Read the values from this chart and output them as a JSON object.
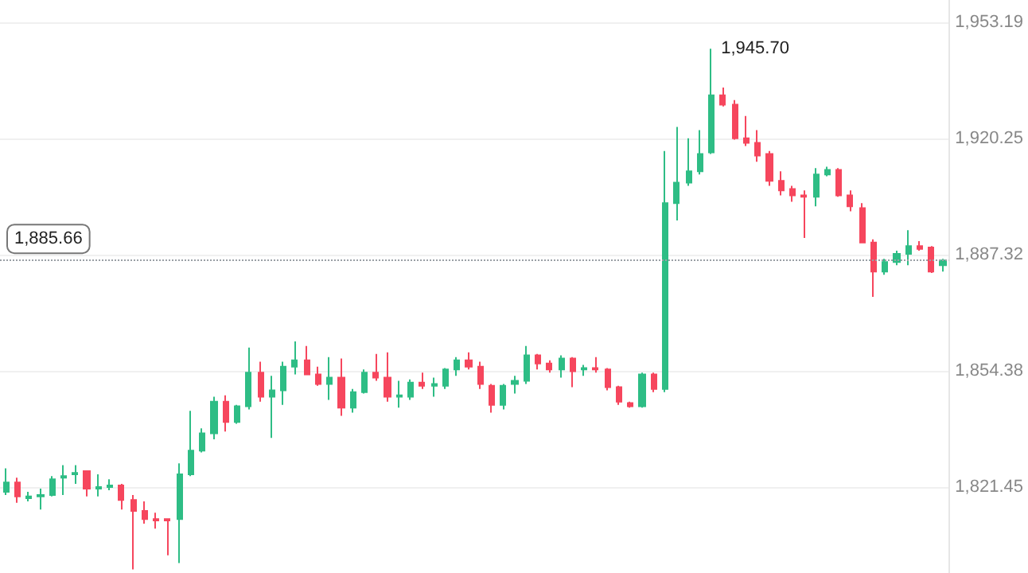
{
  "chart_data": {
    "type": "candlestick",
    "categories": [
      null,
      null,
      null,
      null,
      null,
      null,
      null,
      null,
      null,
      null,
      null,
      null,
      null,
      null,
      null,
      null,
      null,
      null,
      null,
      null,
      null,
      null,
      null,
      null,
      null,
      null,
      null,
      null,
      null,
      null,
      null,
      null,
      null,
      null,
      null,
      null,
      null,
      null,
      null,
      null,
      null,
      null,
      null,
      null,
      null,
      null,
      null,
      null,
      null,
      null,
      null,
      null,
      null,
      null,
      null,
      null,
      null,
      null,
      null,
      null,
      null,
      null,
      null,
      null,
      null,
      null,
      null,
      null,
      null,
      null,
      null,
      null,
      null,
      null,
      null,
      null,
      null,
      null,
      null,
      null,
      null,
      null
    ],
    "ohlc": [
      [
        1820.0,
        1826.7,
        1819.1,
        1822.7
      ],
      [
        1822.7,
        1824.0,
        1816.9,
        1818.7
      ],
      [
        1818.2,
        1820.0,
        1817.3,
        1818.7
      ],
      [
        1818.7,
        1820.9,
        1815.0,
        1819.1
      ],
      [
        1819.1,
        1824.5,
        1818.7,
        1823.6
      ],
      [
        1824.0,
        1827.6,
        1819.1,
        1824.5
      ],
      [
        1825.0,
        1827.6,
        1822.3,
        1825.4
      ],
      [
        1825.9,
        1825.9,
        1818.7,
        1820.9
      ],
      [
        1820.9,
        1825.0,
        1818.7,
        1821.4
      ],
      [
        1821.4,
        1823.6,
        1820.5,
        1821.8
      ],
      [
        1821.8,
        1822.3,
        1815.0,
        1817.7
      ],
      [
        1817.7,
        1819.1,
        1798.0,
        1814.6
      ],
      [
        1814.6,
        1817.3,
        1811.0,
        1812.3
      ],
      [
        1812.3,
        1814.1,
        1809.6,
        1811.9
      ],
      [
        1812.3,
        1812.3,
        1802.0,
        1811.9
      ],
      [
        1812.3,
        1828.1,
        1799.8,
        1825.0
      ],
      [
        1825.0,
        1843.0,
        1824.5,
        1831.7
      ],
      [
        1831.7,
        1838.0,
        1831.2,
        1836.6
      ],
      [
        1836.6,
        1847.0,
        1834.9,
        1845.6
      ],
      [
        1845.6,
        1847.4,
        1837.1,
        1839.8
      ],
      [
        1839.8,
        1844.7,
        1839.3,
        1844.3
      ],
      [
        1844.3,
        1860.9,
        1843.4,
        1853.8
      ],
      [
        1853.8,
        1856.9,
        1845.6,
        1847.0
      ],
      [
        1847.0,
        1852.9,
        1835.3,
        1848.8
      ],
      [
        1848.8,
        1856.9,
        1844.7,
        1855.5
      ],
      [
        1855.5,
        1862.7,
        1853.3,
        1857.3
      ],
      [
        1857.3,
        1861.4,
        1853.3,
        1853.3
      ],
      [
        1853.3,
        1855.5,
        1850.1,
        1850.6
      ],
      [
        1850.6,
        1858.2,
        1846.1,
        1852.4
      ],
      [
        1852.4,
        1857.8,
        1841.6,
        1843.9
      ],
      [
        1843.9,
        1849.2,
        1842.5,
        1848.3
      ],
      [
        1848.3,
        1854.7,
        1847.9,
        1853.8
      ],
      [
        1853.8,
        1859.1,
        1851.5,
        1852.4
      ],
      [
        1852.4,
        1859.6,
        1845.6,
        1847.0
      ],
      [
        1847.0,
        1851.5,
        1843.9,
        1847.4
      ],
      [
        1847.0,
        1851.9,
        1846.1,
        1851.0
      ],
      [
        1851.0,
        1853.8,
        1849.2,
        1850.1
      ],
      [
        1850.1,
        1852.4,
        1847.0,
        1850.6
      ],
      [
        1850.1,
        1855.1,
        1849.2,
        1854.7
      ],
      [
        1854.7,
        1858.2,
        1852.9,
        1857.3
      ],
      [
        1857.3,
        1859.6,
        1854.7,
        1855.5
      ],
      [
        1855.5,
        1856.9,
        1849.2,
        1850.6
      ],
      [
        1850.1,
        1850.6,
        1842.5,
        1844.7
      ],
      [
        1844.7,
        1850.6,
        1843.4,
        1850.1
      ],
      [
        1850.6,
        1852.9,
        1847.9,
        1851.5
      ],
      [
        1851.5,
        1861.4,
        1850.6,
        1858.7
      ],
      [
        1858.7,
        1859.1,
        1854.7,
        1856.4
      ],
      [
        1856.4,
        1857.3,
        1853.8,
        1854.7
      ],
      [
        1854.7,
        1858.7,
        1852.4,
        1857.8
      ],
      [
        1857.8,
        1858.2,
        1849.7,
        1854.2
      ],
      [
        1854.7,
        1856.0,
        1852.9,
        1855.1
      ],
      [
        1855.1,
        1858.2,
        1853.8,
        1854.7
      ],
      [
        1854.7,
        1855.1,
        1848.8,
        1849.7
      ],
      [
        1849.7,
        1850.1,
        1844.7,
        1845.6
      ],
      [
        1845.2,
        1845.6,
        1843.9,
        1844.3
      ],
      [
        1844.3,
        1853.8,
        1843.9,
        1853.3
      ],
      [
        1853.3,
        1853.8,
        1848.3,
        1849.2
      ],
      [
        1849.2,
        1916.7,
        1848.3,
        1901.9
      ],
      [
        1901.9,
        1923.5,
        1897.0,
        1907.7
      ],
      [
        1907.7,
        1920.3,
        1906.8,
        1910.9
      ],
      [
        1910.9,
        1922.6,
        1910.0,
        1915.8
      ],
      [
        1916.3,
        1945.7,
        1915.8,
        1932.5
      ],
      [
        1932.5,
        1934.7,
        1929.3,
        1929.8
      ],
      [
        1929.8,
        1931.1,
        1919.9,
        1920.3
      ],
      [
        1920.3,
        1926.6,
        1918.1,
        1919.0
      ],
      [
        1919.0,
        1922.6,
        1913.6,
        1915.4
      ],
      [
        1915.8,
        1916.7,
        1906.8,
        1908.2
      ],
      [
        1908.2,
        1910.9,
        1904.1,
        1905.5
      ],
      [
        1905.9,
        1906.8,
        1902.3,
        1904.1
      ],
      [
        1904.1,
        1905.5,
        1892.0,
        1903.7
      ],
      [
        1903.7,
        1911.8,
        1901.0,
        1910.0
      ],
      [
        1910.0,
        1912.2,
        1909.5,
        1911.3
      ],
      [
        1911.3,
        1911.8,
        1903.7,
        1904.1
      ],
      [
        1904.1,
        1905.5,
        1899.6,
        1901.0
      ],
      [
        1900.5,
        1901.9,
        1890.7,
        1890.7
      ],
      [
        1890.7,
        1891.6,
        1875.3,
        1882.5
      ],
      [
        1882.5,
        1886.1,
        1881.6,
        1885.2
      ],
      [
        1885.2,
        1888.4,
        1884.3,
        1887.5
      ],
      [
        1887.5,
        1894.2,
        1884.3,
        1889.7
      ],
      [
        1889.7,
        1891.1,
        1888.4,
        1888.9
      ],
      [
        1889.3,
        1889.7,
        1882.1,
        1882.5
      ],
      [
        1884.3,
        1886.1,
        1882.5,
        1885.66
      ]
    ],
    "colors": [
      "#2ebd85",
      "#f6465d",
      "#2ebd85",
      "#2ebd85",
      "#2ebd85",
      "#2ebd85",
      "#2ebd85",
      "#f6465d",
      "#2ebd85",
      "#2ebd85",
      "#f6465d",
      "#f6465d",
      "#f6465d",
      "#f6465d",
      "#f6465d",
      "#2ebd85",
      "#2ebd85",
      "#2ebd85",
      "#2ebd85",
      "#f6465d",
      "#2ebd85",
      "#2ebd85",
      "#f6465d",
      "#2ebd85",
      "#2ebd85",
      "#2ebd85",
      "#f6465d",
      "#f6465d",
      "#2ebd85",
      "#f6465d",
      "#2ebd85",
      "#2ebd85",
      "#f6465d",
      "#f6465d",
      "#2ebd85",
      "#2ebd85",
      "#f6465d",
      "#2ebd85",
      "#2ebd85",
      "#2ebd85",
      "#f6465d",
      "#f6465d",
      "#f6465d",
      "#2ebd85",
      "#2ebd85",
      "#2ebd85",
      "#f6465d",
      "#f6465d",
      "#2ebd85",
      "#f6465d",
      "#2ebd85",
      "#f6465d",
      "#f6465d",
      "#f6465d",
      "#f6465d",
      "#2ebd85",
      "#f6465d",
      "#2ebd85",
      "#2ebd85",
      "#2ebd85",
      "#2ebd85",
      "#2ebd85",
      "#f6465d",
      "#f6465d",
      "#f6465d",
      "#f6465d",
      "#f6465d",
      "#f6465d",
      "#f6465d",
      "#f6465d",
      "#2ebd85",
      "#2ebd85",
      "#f6465d",
      "#f6465d",
      "#f6465d",
      "#f6465d",
      "#2ebd85",
      "#2ebd85",
      "#2ebd85",
      "#f6465d",
      "#f6465d",
      "#2ebd85"
    ],
    "ylim": [
      1797,
      1959.5
    ],
    "yticks": [
      {
        "value": 1821.45,
        "label": "1,821.45"
      },
      {
        "value": 1854.38,
        "label": "1,854.38"
      },
      {
        "value": 1887.32,
        "label": "1,887.32"
      },
      {
        "value": 1920.25,
        "label": "1,920.25"
      },
      {
        "value": 1953.19,
        "label": "1,953.19"
      }
    ],
    "grid": "y",
    "tick_labels": "y",
    "ref_lines": [
      {
        "axis": "y",
        "value": 1885.66,
        "label": "1,885.66",
        "line_style": "dotted",
        "color": "#9aa0a6"
      }
    ],
    "annotations": [
      "1,945.70"
    ]
  }
}
